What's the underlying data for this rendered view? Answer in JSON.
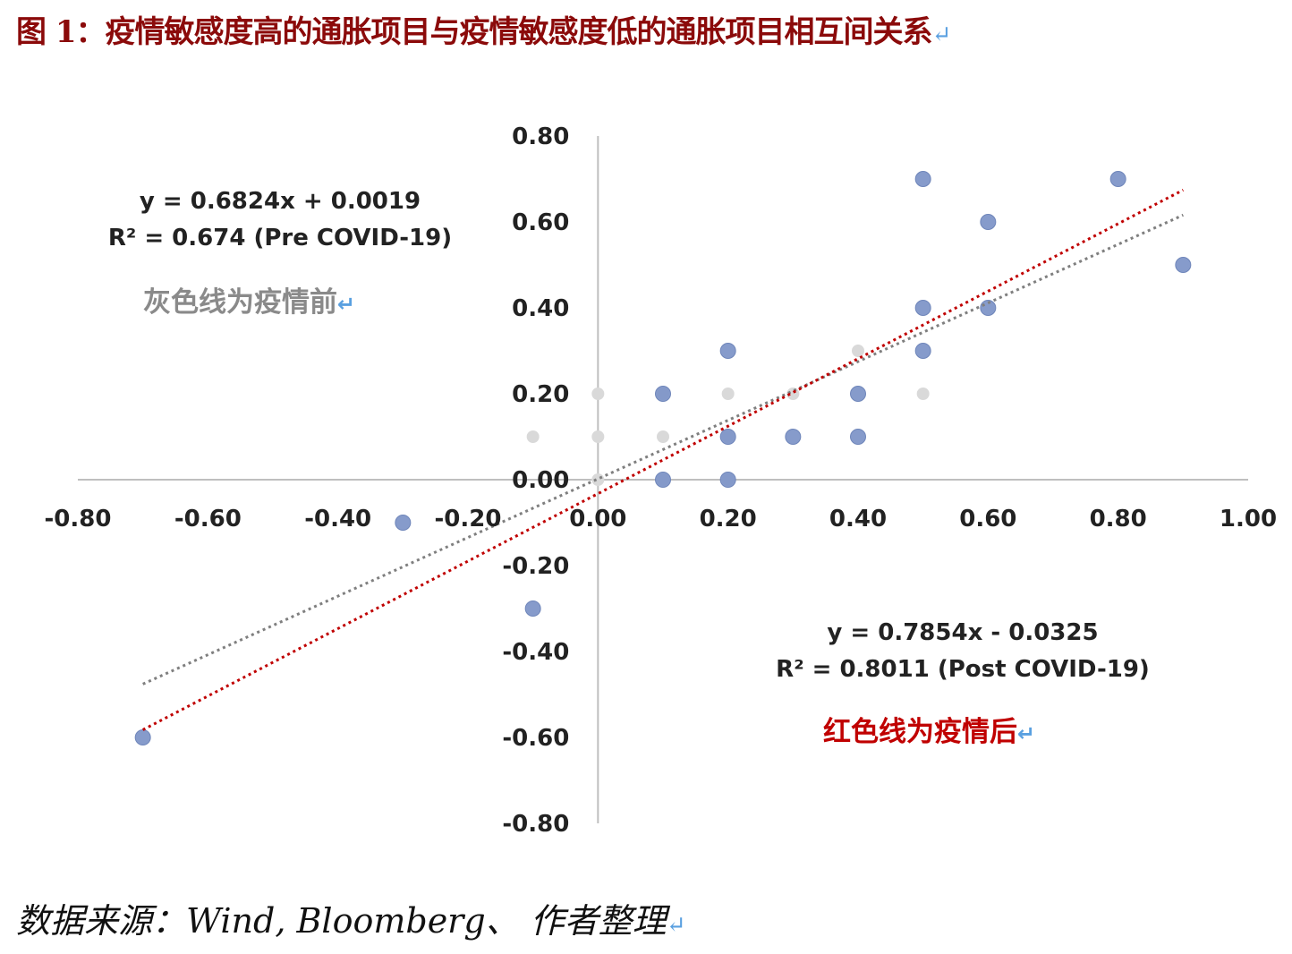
{
  "title": "图 1：疫情敏感度高的通胀项目与疫情敏感度低的通胀项目相互间关系",
  "return_mark": "↵",
  "source": "数据来源：Wind, Bloomberg、 作者整理",
  "chart_data": {
    "type": "scatter",
    "xlim": [
      -0.8,
      1.0
    ],
    "ylim": [
      -0.8,
      0.8
    ],
    "x_ticks": [
      -0.8,
      -0.6,
      -0.4,
      -0.2,
      0.0,
      0.2,
      0.4,
      0.6,
      0.8,
      1.0
    ],
    "y_ticks": [
      -0.8,
      -0.6,
      -0.4,
      -0.2,
      0.0,
      0.2,
      0.4,
      0.6,
      0.8
    ],
    "grid": false,
    "series": [
      {
        "color": "#d9d9d9",
        "points": [
          [
            -0.1,
            0.1
          ],
          [
            0.0,
            0.1
          ],
          [
            0.0,
            0.2
          ],
          [
            0.0,
            0.0
          ],
          [
            0.1,
            0.1
          ],
          [
            0.1,
            0.2
          ],
          [
            0.1,
            0.0
          ],
          [
            0.2,
            0.2
          ],
          [
            0.2,
            0.1
          ],
          [
            0.2,
            0.0
          ],
          [
            0.3,
            0.2
          ],
          [
            0.4,
            0.3
          ],
          [
            0.5,
            0.2
          ]
        ]
      },
      {
        "color": "#7f96c8",
        "points": [
          [
            -0.7,
            -0.6
          ],
          [
            -0.3,
            -0.1
          ],
          [
            -0.1,
            -0.3
          ],
          [
            0.1,
            0.2
          ],
          [
            0.1,
            0.0
          ],
          [
            0.2,
            0.3
          ],
          [
            0.2,
            0.1
          ],
          [
            0.2,
            0.0
          ],
          [
            0.3,
            0.1
          ],
          [
            0.4,
            0.2
          ],
          [
            0.4,
            0.1
          ],
          [
            0.5,
            0.7
          ],
          [
            0.5,
            0.4
          ],
          [
            0.5,
            0.3
          ],
          [
            0.6,
            0.6
          ],
          [
            0.6,
            0.4
          ],
          [
            0.8,
            0.7
          ],
          [
            0.9,
            0.5
          ]
        ]
      }
    ],
    "trendlines": [
      {
        "color": "#7f7f7f",
        "slope": 0.6824,
        "intercept": 0.0019,
        "x_range": [
          -0.7,
          0.9
        ]
      },
      {
        "color": "#c00000",
        "slope": 0.7854,
        "intercept": -0.0325,
        "x_range": [
          -0.7,
          0.9
        ]
      }
    ],
    "annotations": {
      "pre_eq": "y = 0.6824x + 0.0019",
      "pre_r2": "R² = 0.674 (Pre COVID-19)",
      "pre_label": "灰色线为疫情前",
      "post_eq": "y = 0.7854x - 0.0325",
      "post_r2": "R² = 0.8011 (Post COVID-19)",
      "post_label": "红色线为疫情后"
    }
  }
}
